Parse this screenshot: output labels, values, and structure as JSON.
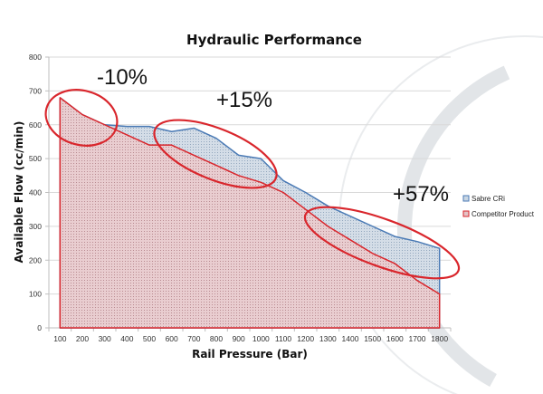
{
  "chart_data": {
    "type": "area",
    "title": "Hydraulic Performance",
    "xlabel": "Rail Pressure (Bar)",
    "ylabel": "Available Flow (cc/min)",
    "x": [
      100,
      200,
      300,
      400,
      500,
      600,
      700,
      800,
      900,
      1000,
      1100,
      1200,
      1300,
      1400,
      1500,
      1600,
      1700,
      1800
    ],
    "xticks": [
      "100",
      "200",
      "300",
      "400",
      "500",
      "600",
      "700",
      "800",
      "900",
      "1000",
      "1100",
      "1200",
      "1300",
      "1400",
      "1500",
      "1600",
      "1700",
      "1800"
    ],
    "yticks": [
      "0",
      "100",
      "200",
      "300",
      "400",
      "500",
      "600",
      "700",
      "800"
    ],
    "ylim": [
      0,
      800
    ],
    "grid": true,
    "legend_position": "right",
    "series": [
      {
        "name": "Sabre CRi",
        "color": "#4a7ab5",
        "fill": "#c9d6e3",
        "values": [
          680,
          630,
          600,
          595,
          595,
          580,
          590,
          560,
          510,
          500,
          435,
          400,
          360,
          330,
          300,
          270,
          255,
          235
        ]
      },
      {
        "name": "Competitor Product",
        "color": "#d9262c",
        "fill": "#e3c3c6",
        "values": [
          680,
          630,
          600,
          570,
          540,
          540,
          510,
          480,
          450,
          430,
          400,
          350,
          300,
          260,
          220,
          190,
          140,
          100
        ]
      }
    ],
    "annotations": [
      {
        "text": "-10%",
        "x_range": [
          100,
          350
        ],
        "y_center": 630
      },
      {
        "text": "+15%",
        "x_range": [
          600,
          1100
        ],
        "y_center": 500
      },
      {
        "text": "+57%",
        "x_range": [
          1200,
          1900
        ],
        "y_center": 230
      }
    ]
  }
}
